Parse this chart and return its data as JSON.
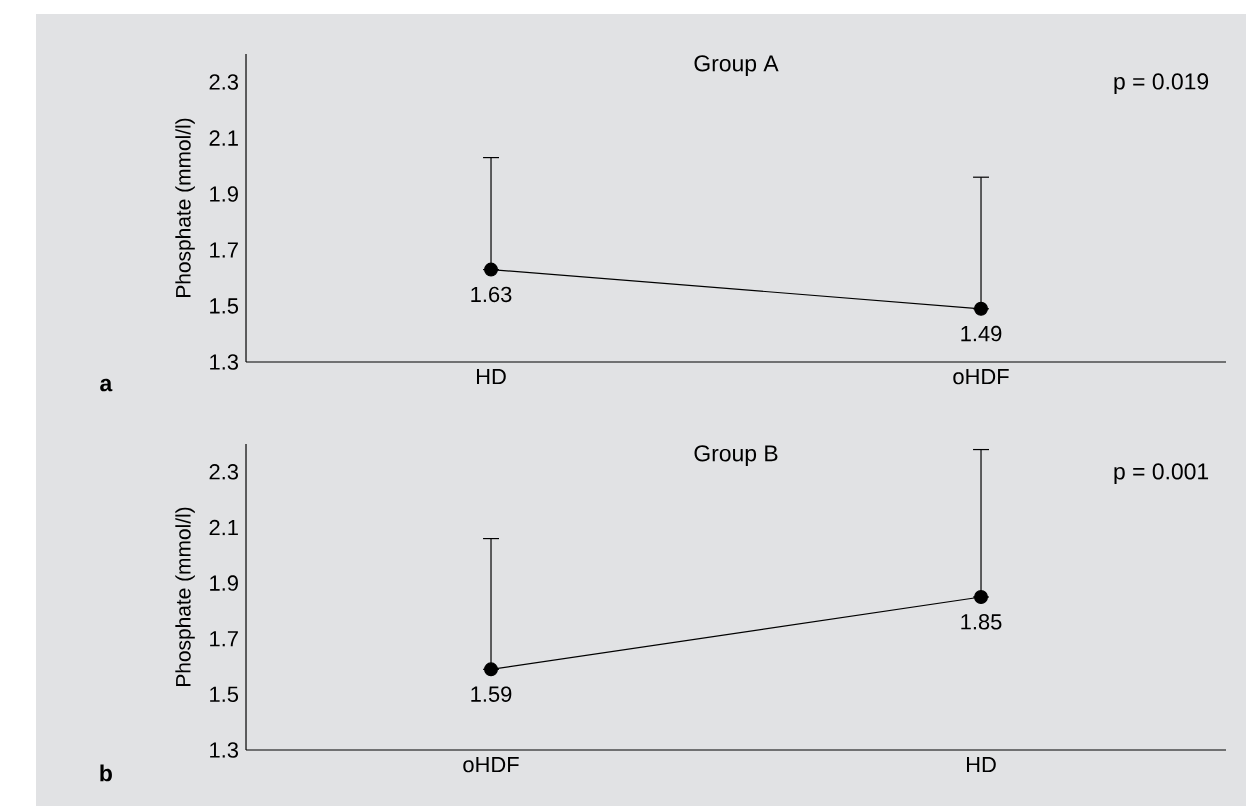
{
  "chart_data": [
    {
      "type": "line",
      "title": "Group A",
      "ylabel": "Phosphate (mmol/l)",
      "categories": [
        "HD",
        "oHDF"
      ],
      "values": [
        1.63,
        1.49
      ],
      "errors": [
        [
          1.63,
          2.03
        ],
        [
          1.49,
          1.96
        ]
      ],
      "color": "#000000",
      "marker": "circle",
      "data_labels": true,
      "ylim": [
        1.3,
        2.4
      ],
      "yticks": [
        1.3,
        1.5,
        1.7,
        1.9,
        2.1,
        2.3
      ],
      "annotations": [
        "p = 0.019",
        "a"
      ]
    },
    {
      "type": "line",
      "title": "Group B",
      "ylabel": "Phosphate (mmol/l)",
      "categories": [
        "oHDF",
        "HD"
      ],
      "values": [
        1.59,
        1.85
      ],
      "errors": [
        [
          1.59,
          2.06
        ],
        [
          1.85,
          2.38
        ]
      ],
      "color": "#000000",
      "marker": "circle",
      "data_labels": true,
      "ylim": [
        1.3,
        2.4
      ],
      "yticks": [
        1.3,
        1.5,
        1.7,
        1.9,
        2.1,
        2.3
      ],
      "annotations": [
        "p = 0.001",
        "b"
      ]
    }
  ]
}
